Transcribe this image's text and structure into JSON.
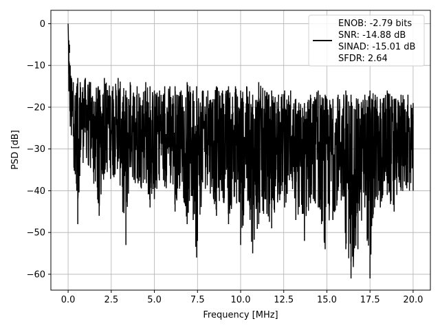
{
  "chart_data": {
    "type": "line",
    "xlabel": "Frequency [MHz]",
    "ylabel": "PSD [dB]",
    "xlim": [
      -1,
      21
    ],
    "ylim": [
      -63.8,
      3.2
    ],
    "xticks": [
      0.0,
      2.5,
      5.0,
      7.5,
      10.0,
      12.5,
      15.0,
      17.5,
      20.0
    ],
    "xtick_labels": [
      "0.0",
      "2.5",
      "5.0",
      "7.5",
      "10.0",
      "12.5",
      "15.0",
      "17.5",
      "20.0"
    ],
    "yticks": [
      0,
      -10,
      -20,
      -30,
      -40,
      -50,
      -60
    ],
    "ytick_labels": [
      "0",
      "−10",
      "−20",
      "−30",
      "−40",
      "−50",
      "−60"
    ],
    "grid": true,
    "legend_position": "top-right",
    "legend_lines": [
      "ENOB: -2.79 bits",
      "SNR: -14.88 dB",
      "SINAD: -15.01 dB",
      "SFDR: 2.64"
    ],
    "series": [
      {
        "color": "#000000",
        "x": [
          0.0,
          0.04,
          0.08,
          0.12,
          0.2,
          0.3,
          0.5,
          0.56,
          0.7,
          1.0,
          1.3,
          1.75,
          1.8,
          2.1,
          2.6,
          2.9,
          3.35,
          3.6,
          4.0,
          4.5,
          4.75,
          5.0,
          5.3,
          5.6,
          5.9,
          6.2,
          6.55,
          6.9,
          7.25,
          7.45,
          7.8,
          8.1,
          8.6,
          8.95,
          9.3,
          9.7,
          10.0,
          10.35,
          10.7,
          11.05,
          11.4,
          11.8,
          12.2,
          12.55,
          12.9,
          13.2,
          13.7,
          14.05,
          14.5,
          14.9,
          15.35,
          15.65,
          16.1,
          16.4,
          16.8,
          17.2,
          17.5,
          17.8,
          18.1,
          18.5,
          18.9,
          19.3,
          19.7,
          20.0
        ],
        "y": [
          0,
          -12,
          -5,
          -18,
          -22,
          -27,
          -40,
          -48,
          -32,
          -25,
          -30,
          -43,
          -46,
          -28,
          -35,
          -33,
          -53,
          -30,
          -37,
          -25,
          -44,
          -42,
          -30,
          -39,
          -34,
          -45,
          -30,
          -48,
          -47,
          -56,
          -38,
          -36,
          -46,
          -40,
          -48,
          -38,
          -53,
          -37,
          -55,
          -48,
          -42,
          -49,
          -38,
          -44,
          -36,
          -47,
          -52,
          -43,
          -44,
          -54,
          -47,
          -40,
          -54,
          -61,
          -54,
          -44,
          -61,
          -42,
          -44,
          -41,
          -45,
          -40,
          -38,
          -40
        ],
        "max_envelope": [
          0,
          -4,
          -7,
          -10,
          -13,
          -14,
          -15,
          -13,
          -14,
          -13,
          -14,
          -15,
          -16,
          -13,
          -15,
          -13,
          -16,
          -14,
          -15,
          -14,
          -15,
          -16,
          -16,
          -15,
          -15,
          -15,
          -16,
          -14,
          -16,
          -15,
          -16,
          -16,
          -15,
          -16,
          -15,
          -15,
          -16,
          -15,
          -17,
          -14,
          -16,
          -16,
          -17,
          -16,
          -16,
          -18,
          -19,
          -17,
          -16,
          -17,
          -18,
          -17,
          -16,
          -17,
          -18,
          -17,
          -16,
          -17,
          -18,
          -16,
          -18,
          -17,
          -17,
          -19
        ],
        "min_envelope": [
          0,
          -20,
          -25,
          -28,
          -32,
          -34,
          -40,
          -48,
          -35,
          -33,
          -36,
          -43,
          -46,
          -37,
          -38,
          -36,
          -53,
          -38,
          -39,
          -40,
          -44,
          -42,
          -38,
          -40,
          -39,
          -45,
          -38,
          -48,
          -47,
          -56,
          -41,
          -39,
          -46,
          -42,
          -48,
          -42,
          -53,
          -42,
          -55,
          -48,
          -45,
          -49,
          -43,
          -44,
          -41,
          -47,
          -52,
          -45,
          -44,
          -54,
          -47,
          -43,
          -54,
          -61,
          -54,
          -46,
          -61,
          -44,
          -44,
          -43,
          -45,
          -42,
          -41,
          -40
        ]
      }
    ]
  }
}
